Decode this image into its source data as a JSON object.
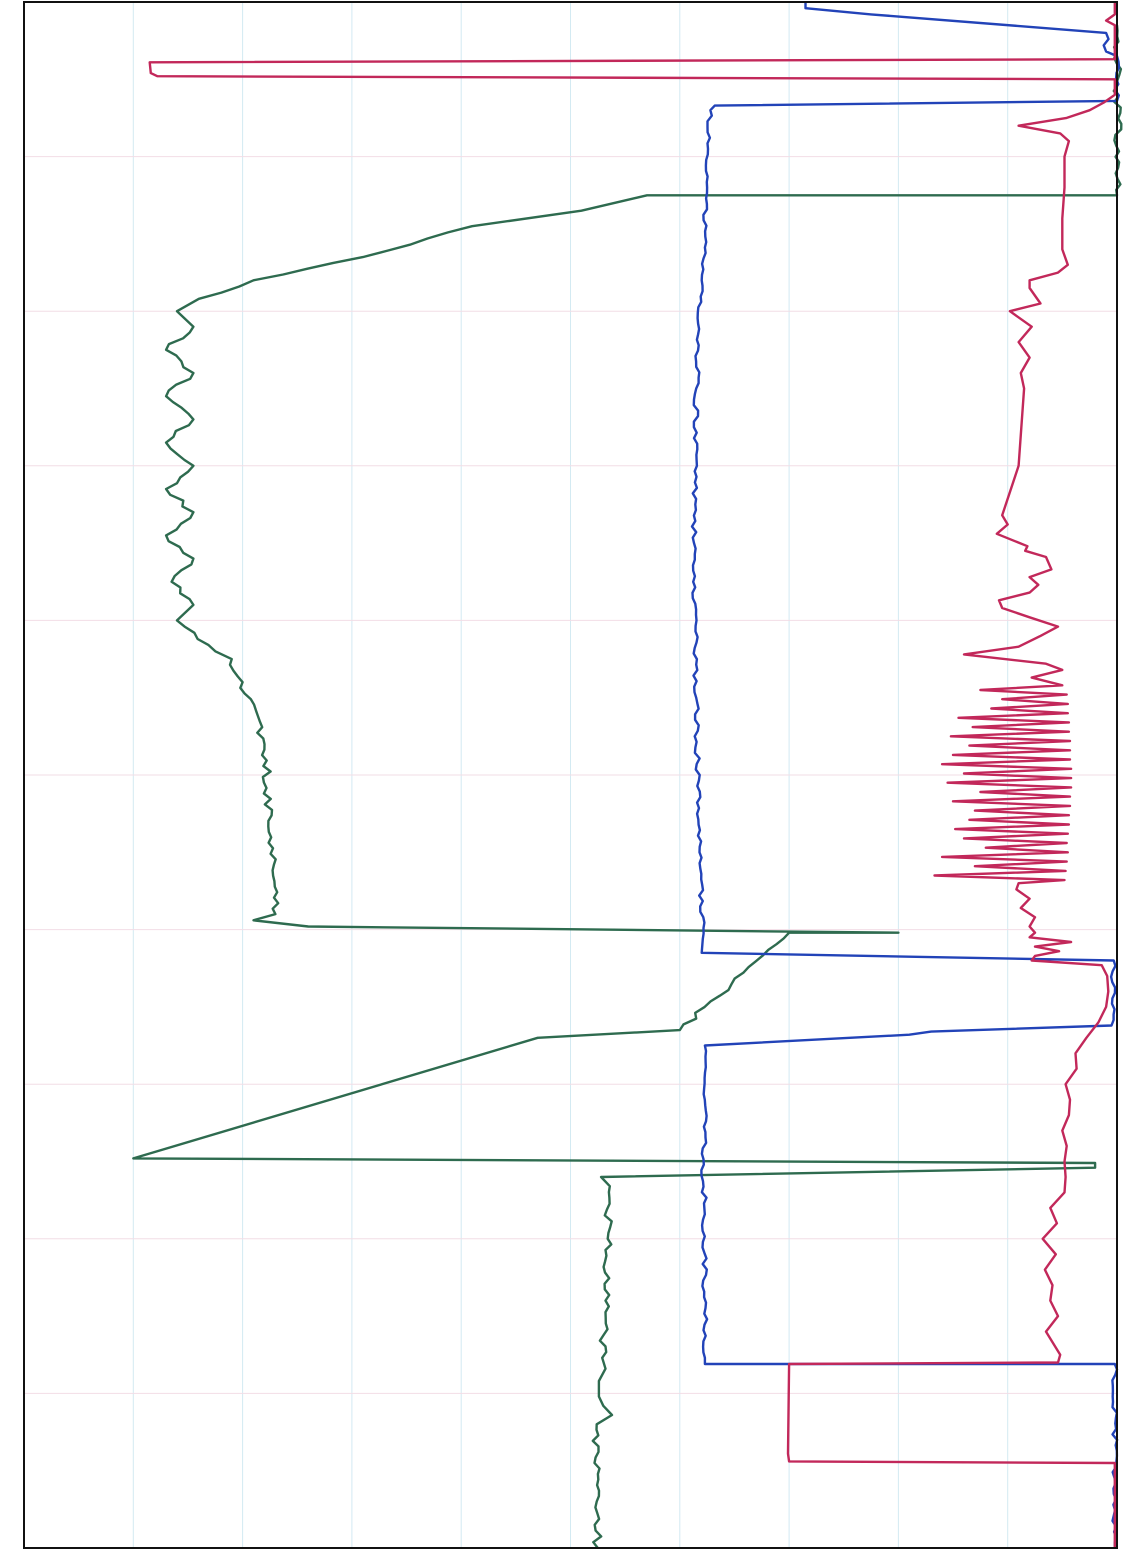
{
  "chart_data": {
    "type": "line",
    "orientation": "rotated-90",
    "title": "",
    "xlabel": "",
    "ylabel": "",
    "grid": true,
    "legend": "none",
    "colors": {
      "green": "#2e6b4f",
      "blue": "#2243b8",
      "red": "#c2285a",
      "grid_major": "#d3eaf2",
      "grid_minor": "#f2dde6",
      "frame": "#111111"
    },
    "series": [
      {
        "color": "green",
        "noise": 0.8,
        "points": [
          [
            0,
            52.5
          ],
          [
            3,
            52.4
          ],
          [
            8,
            52.4
          ],
          [
            8.6,
            53.8
          ],
          [
            9.2,
            53.0
          ],
          [
            9.8,
            52.6
          ],
          [
            10.8,
            52.6
          ],
          [
            11.6,
            53.2
          ],
          [
            12.3,
            52.9
          ],
          [
            16,
            53.2
          ],
          [
            20,
            53.4
          ],
          [
            23.4,
            53.6
          ],
          [
            24.0,
            52.8
          ],
          [
            24.6,
            98
          ],
          [
            24.9,
            98
          ],
          [
            25.2,
            10
          ],
          [
            33,
            47
          ],
          [
            33.5,
            60
          ],
          [
            39.8,
            70
          ],
          [
            39.8,
            80
          ],
          [
            40.2,
            26
          ],
          [
            40.6,
            21
          ],
          [
            41.0,
            23
          ],
          [
            52,
            22
          ],
          [
            56,
            20
          ],
          [
            57.5,
            19
          ],
          [
            58,
            17.5
          ],
          [
            60,
            14
          ],
          [
            61,
            15.5
          ],
          [
            62.5,
            13.5
          ],
          [
            64,
            15.5
          ],
          [
            65.5,
            13
          ],
          [
            67,
            15.5
          ],
          [
            68.5,
            13
          ],
          [
            70,
            15.5
          ],
          [
            71.5,
            13
          ],
          [
            73,
            15.5
          ],
          [
            74.5,
            13
          ],
          [
            76,
            15.5
          ],
          [
            77.5,
            13
          ],
          [
            79,
            15.5
          ],
          [
            80,
            14
          ],
          [
            80.8,
            16
          ],
          [
            82,
            21
          ],
          [
            83.5,
            31
          ],
          [
            85.5,
            41
          ],
          [
            86.5,
            51
          ],
          [
            87.5,
            57
          ],
          [
            87.5,
            100
          ],
          [
            98.5,
            100
          ]
        ]
      },
      {
        "color": "blue",
        "noise": 0.45,
        "points": [
          [
            0,
            99.8
          ],
          [
            11.9,
            99.8
          ],
          [
            11.9,
            62.3
          ],
          [
            12.3,
            62.3
          ],
          [
            24.8,
            62.2
          ],
          [
            32.5,
            62.3
          ],
          [
            33.2,
            81
          ],
          [
            33.4,
            83
          ],
          [
            33.8,
            99.5
          ],
          [
            38,
            99.7
          ],
          [
            38.5,
            62
          ],
          [
            39.4,
            62.1
          ],
          [
            45,
            61.8
          ],
          [
            55,
            61.5
          ],
          [
            65,
            61.3
          ],
          [
            75,
            61.5
          ],
          [
            82,
            62
          ],
          [
            88,
            62.5
          ],
          [
            93,
            62.8
          ],
          [
            93.3,
            63.2
          ],
          [
            93.6,
            100
          ],
          [
            96.5,
            100
          ],
          [
            96.8,
            99
          ],
          [
            98,
            99
          ],
          [
            99.2,
            77.5
          ],
          [
            99.6,
            71.5
          ],
          [
            100,
            71.5
          ]
        ]
      },
      {
        "color": "red",
        "noise": 0,
        "points": [
          [
            0,
            99.8
          ],
          [
            5.5,
            99.8
          ],
          [
            5.6,
            70
          ],
          [
            6.1,
            69.9
          ],
          [
            11.9,
            70
          ],
          [
            12.0,
            94.6
          ],
          [
            12.5,
            94.8
          ],
          [
            14,
            93.5
          ],
          [
            15,
            94.6
          ],
          [
            16,
            93.9
          ],
          [
            17,
            94.1
          ],
          [
            18,
            93.4
          ],
          [
            19,
            94.4
          ],
          [
            20,
            93.2
          ],
          [
            21,
            94.5
          ],
          [
            22,
            93.9
          ],
          [
            23,
            95.2
          ],
          [
            24,
            95.3
          ],
          [
            25,
            95.2
          ],
          [
            26,
            95.4
          ],
          [
            27,
            95.0
          ],
          [
            28,
            95.6
          ],
          [
            29,
            95.7
          ],
          [
            30,
            95.3
          ],
          [
            31,
            96.3
          ],
          [
            32,
            96.2
          ],
          [
            33,
            97.2
          ],
          [
            34,
            98.3
          ],
          [
            35,
            99.0
          ],
          [
            36,
            99.2
          ],
          [
            37,
            99.1
          ],
          [
            37.7,
            98.6
          ],
          [
            38.0,
            92.2
          ],
          [
            38.3,
            92.5
          ],
          [
            38.6,
            94.7
          ],
          [
            38.9,
            92.5
          ],
          [
            39.2,
            95.8
          ],
          [
            39.5,
            92.0
          ],
          [
            39.8,
            92.5
          ],
          [
            40.2,
            92.0
          ],
          [
            40.8,
            92.5
          ],
          [
            41.4,
            91.2
          ],
          [
            42.0,
            92.0
          ],
          [
            42.6,
            90.8
          ],
          [
            43.0,
            91.0
          ],
          [
            43.2,
            95.2
          ],
          [
            43.5,
            83.3
          ],
          [
            43.8,
            95.3
          ],
          [
            44.1,
            87.0
          ],
          [
            44.4,
            95.4
          ],
          [
            44.7,
            84.0
          ],
          [
            45.0,
            95.5
          ],
          [
            45.3,
            88.0
          ],
          [
            45.6,
            95.4
          ],
          [
            45.9,
            86.0
          ],
          [
            46.2,
            95.5
          ],
          [
            46.5,
            85.2
          ],
          [
            46.8,
            95.6
          ],
          [
            47.1,
            86.5
          ],
          [
            47.4,
            95.6
          ],
          [
            47.7,
            87.0
          ],
          [
            48.0,
            95.7
          ],
          [
            48.3,
            85.0
          ],
          [
            48.6,
            95.7
          ],
          [
            48.9,
            87.5
          ],
          [
            49.2,
            95.8
          ],
          [
            49.5,
            84.5
          ],
          [
            49.8,
            95.8
          ],
          [
            50.1,
            86.0
          ],
          [
            50.4,
            95.8
          ],
          [
            50.7,
            84.0
          ],
          [
            51.0,
            95.7
          ],
          [
            51.3,
            85.0
          ],
          [
            51.6,
            95.7
          ],
          [
            51.9,
            86.5
          ],
          [
            52.2,
            95.7
          ],
          [
            52.5,
            84.8
          ],
          [
            52.8,
            95.6
          ],
          [
            53.1,
            86.8
          ],
          [
            53.4,
            95.6
          ],
          [
            53.7,
            85.5
          ],
          [
            54.0,
            95.5
          ],
          [
            54.3,
            88.5
          ],
          [
            54.6,
            95.5
          ],
          [
            54.9,
            89.5
          ],
          [
            55.2,
            95.4
          ],
          [
            55.5,
            87.5
          ],
          [
            55.8,
            95.0
          ],
          [
            56.3,
            92.2
          ],
          [
            56.8,
            95.0
          ],
          [
            57.2,
            93.5
          ],
          [
            57.8,
            86.0
          ],
          [
            58.3,
            91.0
          ],
          [
            59.0,
            93.0
          ],
          [
            59.6,
            94.6
          ],
          [
            60.2,
            92.0
          ],
          [
            60.8,
            89.5
          ],
          [
            61.3,
            89.2
          ],
          [
            61.8,
            92.0
          ],
          [
            62.3,
            92.8
          ],
          [
            62.8,
            92.0
          ],
          [
            63.3,
            94.0
          ],
          [
            64.1,
            93.5
          ],
          [
            64.5,
            91.6
          ],
          [
            64.8,
            91.8
          ],
          [
            65.6,
            89.0
          ],
          [
            66.2,
            90.0
          ],
          [
            66.8,
            89.5
          ],
          [
            70,
            91
          ],
          [
            75,
            91.5
          ],
          [
            76,
            91.2
          ],
          [
            77,
            92.0
          ],
          [
            78,
            91.0
          ],
          [
            79,
            92.2
          ],
          [
            80.0,
            90.2
          ],
          [
            80.5,
            93.0
          ],
          [
            81.5,
            92.0
          ],
          [
            82,
            92.0
          ],
          [
            82.5,
            94.6
          ],
          [
            83,
            95.5
          ],
          [
            84,
            95.0
          ],
          [
            86,
            95.0
          ],
          [
            88,
            95.2
          ],
          [
            90,
            95.2
          ],
          [
            91,
            95.6
          ],
          [
            91.5,
            94.8
          ],
          [
            92.0,
            91.0
          ],
          [
            92.5,
            95.4
          ],
          [
            93,
            97.5
          ],
          [
            93.5,
            98.8
          ],
          [
            94,
            99.8
          ],
          [
            95.0,
            99.8
          ],
          [
            95.2,
            12.2
          ],
          [
            95.4,
            11.6
          ],
          [
            96.1,
            11.5
          ],
          [
            96.3,
            99.8
          ],
          [
            98.5,
            99.8
          ],
          [
            98.8,
            99.0
          ],
          [
            99.2,
            99.8
          ],
          [
            100,
            99.8
          ]
        ]
      }
    ]
  }
}
